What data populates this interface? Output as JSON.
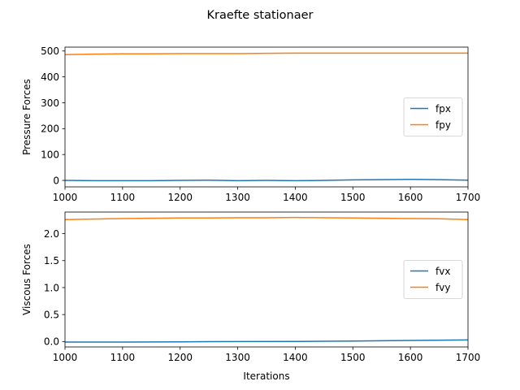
{
  "suptitle": "Kraefte stationaer",
  "colors": {
    "series_a": "#1f77b4",
    "series_b": "#ff7f0e"
  },
  "chart_data": [
    {
      "type": "line",
      "ylabel": "Pressure Forces",
      "xlabel": "",
      "xlim": [
        1000,
        1700
      ],
      "ylim": [
        -25,
        515
      ],
      "xticks": [
        1000,
        1100,
        1200,
        1300,
        1400,
        1500,
        1600,
        1700
      ],
      "yticks": [
        0,
        100,
        200,
        300,
        400,
        500
      ],
      "legend": "center-right",
      "series": [
        {
          "name": "fpx",
          "x": [
            1000,
            1050,
            1100,
            1150,
            1200,
            1250,
            1300,
            1350,
            1400,
            1450,
            1500,
            1550,
            1600,
            1650,
            1700
          ],
          "y": [
            0,
            -1,
            -1,
            -1,
            0,
            1,
            -1,
            0,
            -1,
            0,
            2,
            3,
            4,
            3,
            1
          ]
        },
        {
          "name": "fpy",
          "x": [
            1000,
            1050,
            1100,
            1150,
            1200,
            1250,
            1300,
            1350,
            1400,
            1450,
            1500,
            1550,
            1600,
            1650,
            1700
          ],
          "y": [
            486,
            488,
            489,
            489,
            490,
            490,
            490,
            491,
            492,
            492,
            492,
            492,
            492,
            492,
            492
          ]
        }
      ]
    },
    {
      "type": "line",
      "ylabel": "Viscous Forces",
      "xlabel": "Iterations",
      "xlim": [
        1000,
        1700
      ],
      "ylim": [
        -0.1,
        2.4
      ],
      "xticks": [
        1000,
        1100,
        1200,
        1300,
        1400,
        1500,
        1600,
        1700
      ],
      "yticks": [
        0.0,
        0.5,
        1.0,
        1.5,
        2.0
      ],
      "ytick_labels": [
        "0.0",
        "0.5",
        "1.0",
        "1.5",
        "2.0"
      ],
      "legend": "center-right",
      "series": [
        {
          "name": "fvx",
          "x": [
            1000,
            1100,
            1200,
            1300,
            1400,
            1500,
            1600,
            1700
          ],
          "y": [
            -0.01,
            -0.01,
            -0.005,
            0.0,
            0.002,
            0.01,
            0.02,
            0.03
          ]
        },
        {
          "name": "fvy",
          "x": [
            1000,
            1050,
            1100,
            1150,
            1200,
            1250,
            1300,
            1350,
            1400,
            1450,
            1500,
            1550,
            1600,
            1650,
            1700
          ],
          "y": [
            2.26,
            2.27,
            2.28,
            2.285,
            2.29,
            2.29,
            2.295,
            2.295,
            2.3,
            2.295,
            2.29,
            2.285,
            2.28,
            2.275,
            2.26
          ]
        }
      ]
    }
  ]
}
